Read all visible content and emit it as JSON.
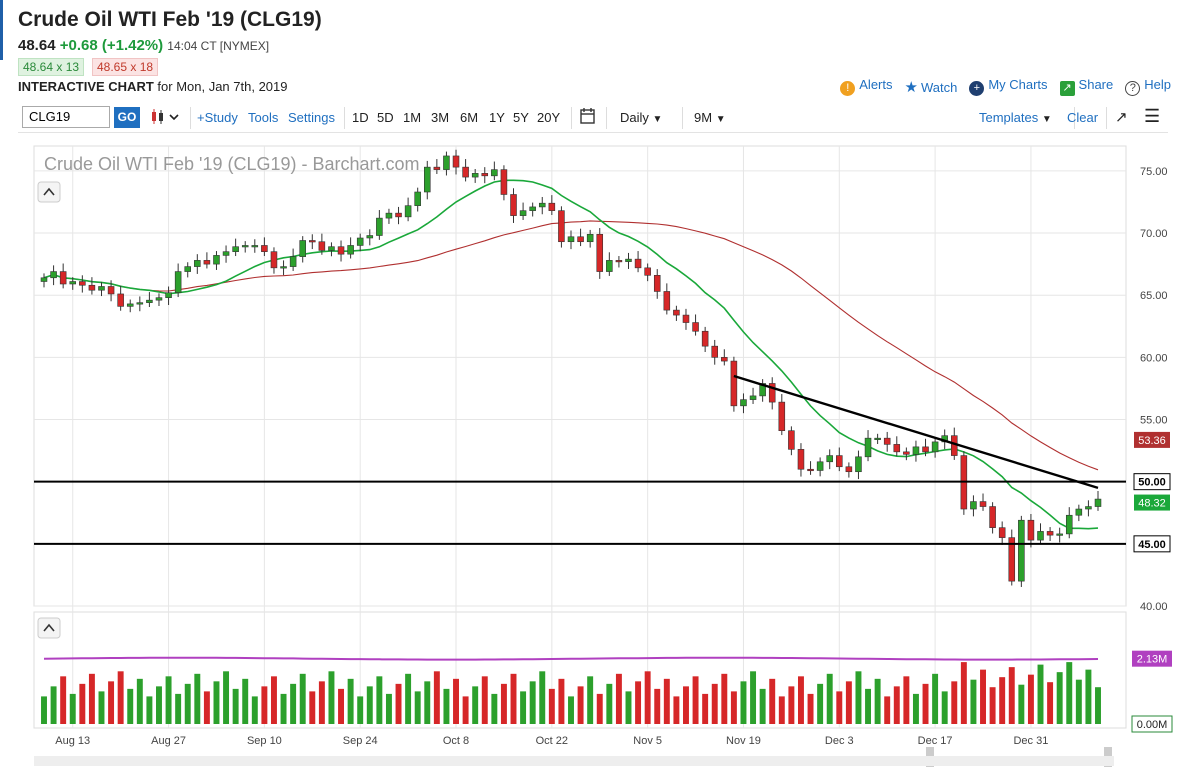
{
  "header": {
    "title": "Crude Oil WTI Feb '19 (CLG19)",
    "last": "48.64",
    "change": "+0.68 (+1.42%)",
    "time": "14:04 CT [NYMEX]",
    "bid": "48.64 x 13",
    "ask": "48.65 x 18",
    "interactive_label": "INTERACTIVE CHART",
    "date_label": "for Mon, Jan 7th, 2019"
  },
  "toplinks": [
    "Alerts",
    "Watch",
    "My Charts",
    "Share",
    "Help"
  ],
  "toolbar": {
    "symbol": "CLG19",
    "go": "GO",
    "study": "+Study",
    "tools": "Tools",
    "settings": "Settings",
    "periods": [
      "1D",
      "5D",
      "1M",
      "3M",
      "6M",
      "1Y",
      "5Y",
      "20Y"
    ],
    "interval": "Daily",
    "range": "9M",
    "templates": "Templates",
    "clear": "Clear"
  },
  "colors": {
    "up": "#2ca02c",
    "down": "#d62728",
    "ma_short": "#1aa83a",
    "ma_long": "#b03030",
    "vol_ma": "#b040c0",
    "accent": "#1f6fc0"
  },
  "chart_data": {
    "type": "candlestick",
    "title": "Crude Oil WTI Feb '19 (CLG19) - Barchart.com",
    "x_ticks": [
      "Aug 13",
      "Aug 27",
      "Sep 10",
      "Sep 24",
      "Oct 8",
      "Oct 22",
      "Nov 5",
      "Nov 19",
      "Dec 3",
      "Dec 17",
      "Dec 31"
    ],
    "ylim": [
      40,
      77
    ],
    "y_ticks": [
      "75.00",
      "70.00",
      "65.00",
      "60.00",
      "55.00",
      "50.00",
      "45.00",
      "40.00"
    ],
    "closes": [
      66.4,
      66.9,
      65.9,
      66.1,
      65.8,
      65.4,
      65.7,
      65.1,
      64.1,
      64.3,
      64.4,
      64.6,
      64.8,
      65.2,
      66.9,
      67.3,
      67.8,
      67.5,
      68.2,
      68.5,
      68.9,
      69.0,
      69.0,
      68.5,
      67.2,
      67.3,
      68.1,
      69.4,
      69.3,
      68.6,
      68.9,
      68.3,
      69.0,
      69.6,
      69.8,
      71.2,
      71.6,
      71.3,
      72.2,
      73.3,
      75.3,
      75.1,
      76.2,
      75.3,
      74.5,
      74.8,
      74.6,
      75.1,
      73.1,
      71.4,
      71.8,
      72.1,
      72.4,
      71.8,
      69.3,
      69.7,
      69.3,
      69.9,
      66.9,
      67.8,
      67.7,
      67.9,
      67.2,
      66.6,
      65.3,
      63.8,
      63.4,
      62.8,
      62.1,
      60.9,
      60.0,
      59.7,
      56.1,
      56.6,
      56.9,
      57.9,
      56.4,
      54.1,
      52.6,
      51.0,
      50.9,
      51.6,
      52.1,
      51.2,
      50.8,
      52.0,
      53.5,
      53.5,
      53.0,
      52.4,
      52.2,
      52.8,
      52.4,
      53.2,
      53.7,
      52.1,
      47.8,
      48.4,
      48.0,
      46.3,
      45.5,
      42.0,
      46.9,
      45.3,
      46.0,
      45.7,
      45.8,
      47.3,
      47.8,
      48.0,
      48.6
    ],
    "overlays": {
      "ma_short_last": "48.32",
      "ma_long_last": "53.36"
    },
    "horizontal_levels": [
      {
        "value": 50.0,
        "label": "50.00"
      },
      {
        "value": 45.0,
        "label": "45.00"
      }
    ],
    "trendline": {
      "start": [
        "Nov 13",
        58.5
      ],
      "end": [
        "Jan 7",
        49.5
      ]
    },
    "volume": {
      "axis_labels": [
        "2.13M",
        "0.00M"
      ],
      "avg_last": "2.13M"
    }
  }
}
